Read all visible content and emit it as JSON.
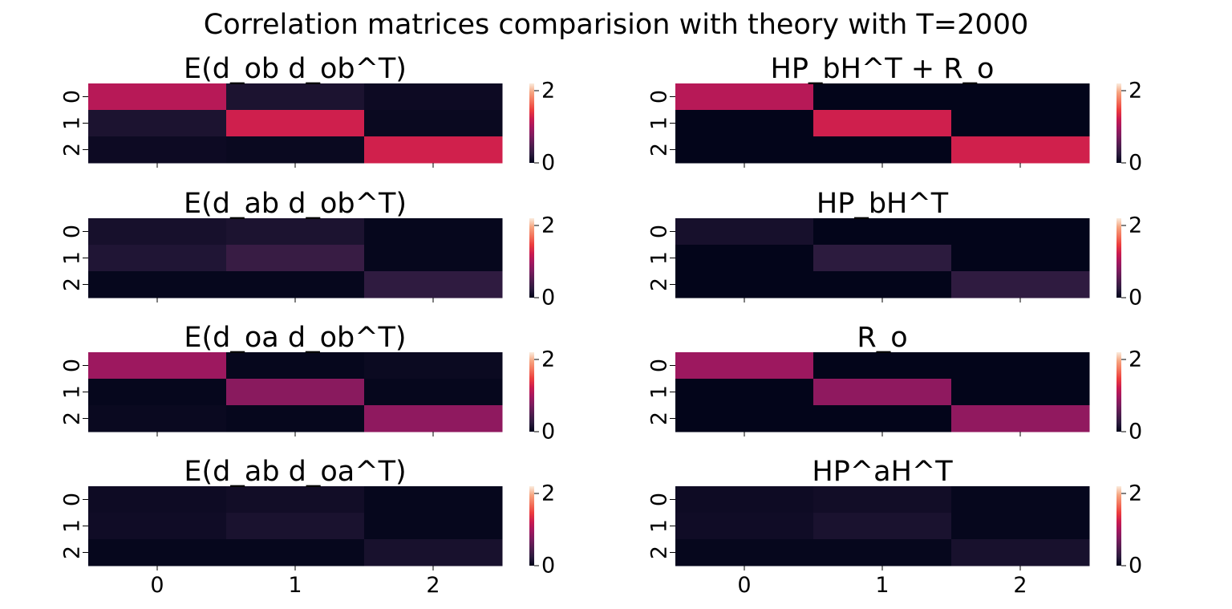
{
  "title": "Correlation matrices comparision with theory with T=2000",
  "colorbar": {
    "min": 0,
    "max": 2.2,
    "ticks": [
      "0",
      "2"
    ]
  },
  "colors": {
    "stops": [
      "#03051a",
      "#2b1b3e",
      "#501d4f",
      "#7a1c5e",
      "#a3175f",
      "#cb1b4f",
      "#ec3d3d",
      "#f3735b",
      "#f6a47f",
      "#faebdd"
    ]
  },
  "chart_data": [
    {
      "type": "heatmap",
      "title": "E(d_ob d_ob^T)",
      "xticks": [
        "0",
        "1",
        "2"
      ],
      "yticks": [
        "0",
        "1",
        "2"
      ],
      "values": [
        [
          1.1,
          0.15,
          0.06
        ],
        [
          0.15,
          1.25,
          0.04
        ],
        [
          0.06,
          0.04,
          1.26
        ]
      ]
    },
    {
      "type": "heatmap",
      "title": "HP_bH^T + R_o",
      "xticks": [
        "0",
        "1",
        "2"
      ],
      "yticks": [
        "0",
        "1",
        "2"
      ],
      "values": [
        [
          1.1,
          0.0,
          0.0
        ],
        [
          0.0,
          1.25,
          0.0
        ],
        [
          0.0,
          0.0,
          1.26
        ]
      ]
    },
    {
      "type": "heatmap",
      "title": "E(d_ab d_ob^T)",
      "xticks": [
        "0",
        "1",
        "2"
      ],
      "yticks": [
        "0",
        "1",
        "2"
      ],
      "values": [
        [
          0.12,
          0.15,
          0.02
        ],
        [
          0.18,
          0.33,
          0.02
        ],
        [
          0.02,
          0.02,
          0.27
        ]
      ]
    },
    {
      "type": "heatmap",
      "title": "HP_bH^T",
      "xticks": [
        "0",
        "1",
        "2"
      ],
      "yticks": [
        "0",
        "1",
        "2"
      ],
      "values": [
        [
          0.12,
          0.0,
          0.0
        ],
        [
          0.0,
          0.25,
          0.0
        ],
        [
          0.0,
          0.0,
          0.27
        ]
      ]
    },
    {
      "type": "heatmap",
      "title": "E(d_oa d_ob^T)",
      "xticks": [
        "0",
        "1",
        "2"
      ],
      "yticks": [
        "0",
        "1",
        "2"
      ],
      "values": [
        [
          0.94,
          0.02,
          0.05
        ],
        [
          0.02,
          0.82,
          0.02
        ],
        [
          0.04,
          0.02,
          0.86
        ]
      ]
    },
    {
      "type": "heatmap",
      "title": "R_o",
      "xticks": [
        "0",
        "1",
        "2"
      ],
      "yticks": [
        "0",
        "1",
        "2"
      ],
      "values": [
        [
          0.94,
          0.0,
          0.0
        ],
        [
          0.0,
          0.86,
          0.0
        ],
        [
          0.0,
          0.0,
          0.87
        ]
      ]
    },
    {
      "type": "heatmap",
      "title": "E(d_ab d_oa^T)",
      "xticks": [
        "0",
        "1",
        "2"
      ],
      "yticks": [
        "0",
        "1",
        "2"
      ],
      "values": [
        [
          0.07,
          0.09,
          0.02
        ],
        [
          0.08,
          0.14,
          0.02
        ],
        [
          0.02,
          0.02,
          0.13
        ]
      ]
    },
    {
      "type": "heatmap",
      "title": "HP^aH^T",
      "xticks": [
        "0",
        "1",
        "2"
      ],
      "yticks": [
        "0",
        "1",
        "2"
      ],
      "values": [
        [
          0.07,
          0.09,
          0.02
        ],
        [
          0.08,
          0.14,
          0.02
        ],
        [
          0.02,
          0.02,
          0.13
        ]
      ]
    }
  ]
}
